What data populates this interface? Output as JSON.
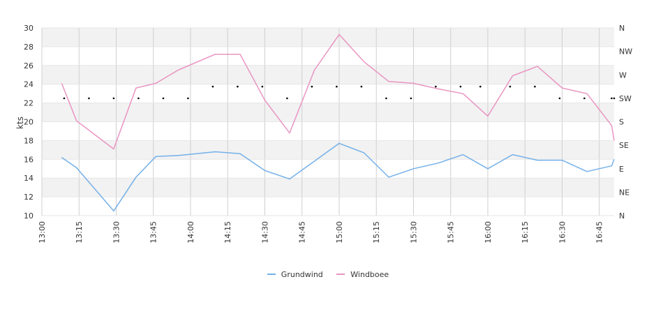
{
  "chart_data": {
    "type": "line",
    "ylabel": "kts",
    "ylim": [
      10,
      30
    ],
    "yticks": [
      10,
      12,
      14,
      16,
      18,
      20,
      22,
      24,
      26,
      28,
      30
    ],
    "xlim": [
      "13:00",
      "16:51"
    ],
    "xticks": [
      "13:00",
      "13:15",
      "13:30",
      "13:45",
      "14:00",
      "14:15",
      "14:30",
      "14:45",
      "15:00",
      "15:15",
      "15:30",
      "15:45",
      "16:00",
      "16:15",
      "16:30",
      "16:45"
    ],
    "direction_axis": {
      "ticks": [
        "N",
        "NE",
        "E",
        "SE",
        "S",
        "SW",
        "W",
        "NW",
        "N"
      ],
      "range_deg": [
        0,
        360
      ]
    },
    "grid": true,
    "legend_position": "bottom",
    "series": [
      {
        "name": "Grundwind",
        "color": "#74b0e8",
        "x": [
          "13:08",
          "13:14",
          "13:29",
          "13:38",
          "13:46",
          "13:55",
          "14:10",
          "14:20",
          "14:30",
          "14:40",
          "14:50",
          "15:00",
          "15:10",
          "15:20",
          "15:30",
          "15:40",
          "15:50",
          "16:00",
          "16:10",
          "16:20",
          "16:30",
          "16:40",
          "16:50",
          "16:51"
        ],
        "values": [
          16.2,
          15.1,
          10.5,
          14.1,
          16.3,
          16.4,
          16.8,
          16.6,
          14.8,
          13.9,
          15.8,
          17.7,
          16.7,
          14.1,
          15.0,
          15.6,
          16.5,
          15.0,
          16.5,
          15.9,
          15.9,
          14.7,
          15.3,
          16.0
        ]
      },
      {
        "name": "Windboee",
        "color": "#e994c1",
        "x": [
          "13:08",
          "13:14",
          "13:29",
          "13:38",
          "13:46",
          "13:55",
          "14:10",
          "14:20",
          "14:30",
          "14:40",
          "14:50",
          "15:00",
          "15:10",
          "15:20",
          "15:30",
          "15:40",
          "15:50",
          "16:00",
          "16:10",
          "16:20",
          "16:30",
          "16:40",
          "16:50",
          "16:51"
        ],
        "values": [
          24.1,
          20.1,
          17.1,
          23.6,
          24.1,
          25.5,
          27.2,
          27.2,
          22.3,
          18.8,
          25.5,
          29.3,
          26.4,
          24.3,
          24.1,
          23.5,
          23.0,
          20.6,
          24.9,
          25.9,
          23.6,
          23.0,
          19.6,
          18.0
        ]
      }
    ],
    "direction_markers": {
      "x": [
        "13:09",
        "13:19",
        "13:29",
        "13:39",
        "13:49",
        "13:59",
        "14:09",
        "14:19",
        "14:29",
        "14:39",
        "14:49",
        "14:59",
        "15:09",
        "15:19",
        "15:29",
        "15:39",
        "15:49",
        "15:57",
        "16:09",
        "16:19",
        "16:29",
        "16:39",
        "16:50",
        "16:51"
      ],
      "degrees": [
        225,
        225,
        225,
        225,
        225,
        225,
        247.5,
        247.5,
        247.5,
        225,
        247.5,
        247.5,
        247.5,
        225,
        225,
        247.5,
        247.5,
        247.5,
        247.5,
        247.5,
        225,
        225,
        225,
        225
      ]
    }
  }
}
